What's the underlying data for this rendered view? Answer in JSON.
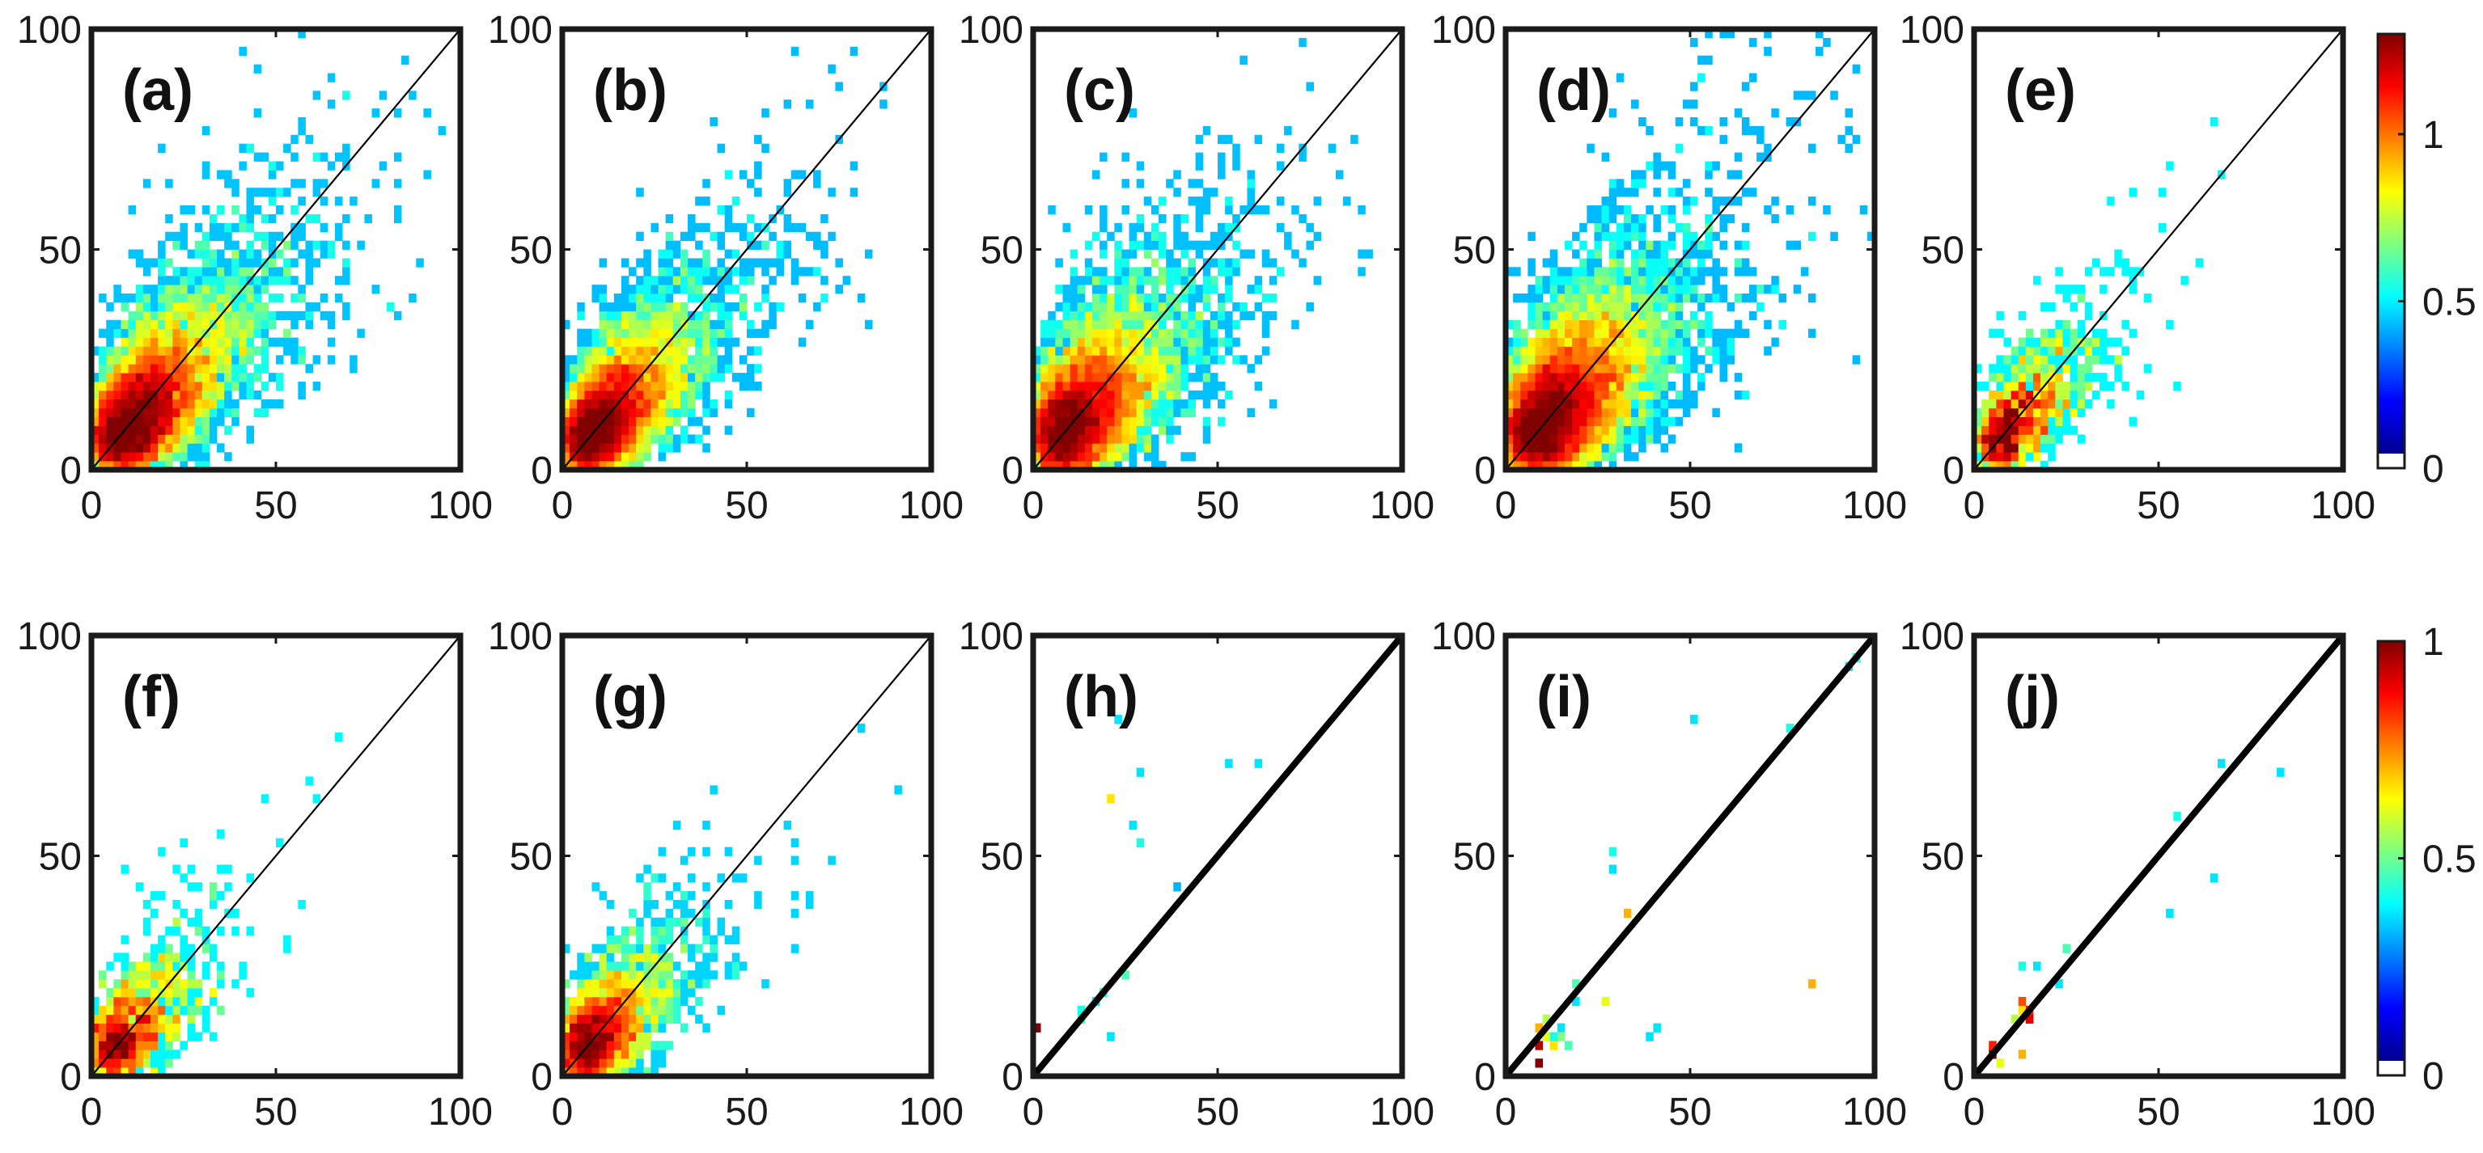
{
  "chart_data": [
    {
      "type": "heatmap",
      "panel_label": "(a)",
      "xlim": [
        0,
        100
      ],
      "ylim": [
        0,
        100
      ],
      "x_ticks": [
        "0",
        "50",
        "100"
      ],
      "y_ticks": [
        "0",
        "50",
        "100"
      ],
      "bins": 50,
      "density": "high",
      "spread": 0.9,
      "peak": [
        14,
        13
      ],
      "diagonal": "y = x",
      "seed": 11
    },
    {
      "type": "heatmap",
      "panel_label": "(b)",
      "xlim": [
        0,
        100
      ],
      "ylim": [
        0,
        100
      ],
      "x_ticks": [
        "0",
        "50",
        "100"
      ],
      "y_ticks": [
        "0",
        "50",
        "100"
      ],
      "bins": 50,
      "density": "high",
      "spread": 0.85,
      "peak": [
        12,
        12
      ],
      "diagonal": "y = x",
      "seed": 23
    },
    {
      "type": "heatmap",
      "panel_label": "(c)",
      "xlim": [
        0,
        100
      ],
      "ylim": [
        0,
        100
      ],
      "x_ticks": [
        "0",
        "50",
        "100"
      ],
      "y_ticks": [
        "0",
        "50",
        "100"
      ],
      "bins": 50,
      "density": "high",
      "spread": 1.0,
      "peak": [
        13,
        13
      ],
      "diagonal": "y = x",
      "seed": 37
    },
    {
      "type": "heatmap",
      "panel_label": "(d)",
      "xlim": [
        0,
        100
      ],
      "ylim": [
        0,
        100
      ],
      "x_ticks": [
        "0",
        "50",
        "100"
      ],
      "y_ticks": [
        "0",
        "50",
        "100"
      ],
      "bins": 50,
      "density": "very high",
      "spread": 1.0,
      "peak": [
        14,
        12
      ],
      "diagonal": "y = x",
      "seed": 41
    },
    {
      "type": "heatmap",
      "panel_label": "(e)",
      "xlim": [
        0,
        100
      ],
      "ylim": [
        0,
        100
      ],
      "x_ticks": [
        "0",
        "50",
        "100"
      ],
      "y_ticks": [
        "0",
        "50",
        "100"
      ],
      "bins": 50,
      "density": "sparse",
      "spread": 0.75,
      "peak": [
        12,
        10
      ],
      "diagonal": "y = x",
      "seed": 53
    },
    {
      "type": "heatmap",
      "panel_label": "(f)",
      "xlim": [
        0,
        100
      ],
      "ylim": [
        0,
        100
      ],
      "x_ticks": [
        "0",
        "50",
        "100"
      ],
      "y_ticks": [
        "0",
        "50",
        "100"
      ],
      "bins": 50,
      "density": "sparse",
      "spread": 0.8,
      "peak": [
        10,
        8
      ],
      "diagonal": "y = x",
      "seed": 67
    },
    {
      "type": "heatmap",
      "panel_label": "(g)",
      "xlim": [
        0,
        100
      ],
      "ylim": [
        0,
        100
      ],
      "x_ticks": [
        "0",
        "50",
        "100"
      ],
      "y_ticks": [
        "0",
        "50",
        "100"
      ],
      "bins": 50,
      "density": "medium",
      "spread": 0.9,
      "peak": [
        10,
        9
      ],
      "diagonal": "y = x",
      "seed": 71
    },
    {
      "type": "heatmap",
      "panel_label": "(h)",
      "xlim": [
        0,
        100
      ],
      "ylim": [
        0,
        100
      ],
      "x_ticks": [
        "0",
        "50",
        "100"
      ],
      "y_ticks": [
        "0",
        "50",
        "100"
      ],
      "bins": 50,
      "density": "very sparse",
      "diagonal": "y = x",
      "cells": [
        [
          1,
          10,
          1.0
        ],
        [
          12,
          13,
          0.45
        ],
        [
          13,
          14,
          0.4
        ],
        [
          17,
          17,
          0.35
        ],
        [
          19,
          19,
          0.4
        ],
        [
          21,
          8,
          0.35
        ],
        [
          22,
          80,
          0.35
        ],
        [
          24,
          23,
          0.45
        ],
        [
          27,
          56,
          0.35
        ],
        [
          28,
          52,
          0.4
        ],
        [
          20,
          63,
          0.65
        ],
        [
          29,
          68,
          0.35
        ],
        [
          39,
          42,
          0.3
        ],
        [
          52,
          70,
          0.35
        ],
        [
          60,
          70,
          0.35
        ]
      ]
    },
    {
      "type": "heatmap",
      "panel_label": "(i)",
      "xlim": [
        0,
        100
      ],
      "ylim": [
        0,
        100
      ],
      "x_ticks": [
        "0",
        "50",
        "100"
      ],
      "y_ticks": [
        "0",
        "50",
        "100"
      ],
      "bins": 50,
      "density": "very sparse",
      "diagonal": "y = x",
      "cells": [
        [
          8,
          6,
          0.95
        ],
        [
          8,
          3,
          1.0
        ],
        [
          9,
          10,
          0.7
        ],
        [
          10,
          8,
          0.6
        ],
        [
          10,
          12,
          0.55
        ],
        [
          12,
          7,
          0.65
        ],
        [
          13,
          9,
          0.4
        ],
        [
          14,
          11,
          0.35
        ],
        [
          15,
          8,
          0.5
        ],
        [
          16,
          6,
          0.45
        ],
        [
          18,
          20,
          0.45
        ],
        [
          19,
          17,
          0.35
        ],
        [
          27,
          16,
          0.6
        ],
        [
          28,
          50,
          0.4
        ],
        [
          29,
          46,
          0.35
        ],
        [
          32,
          36,
          0.7
        ],
        [
          38,
          9,
          0.35
        ],
        [
          40,
          10,
          0.35
        ],
        [
          50,
          81,
          0.35
        ],
        [
          76,
          78,
          0.4
        ],
        [
          82,
          20,
          0.7
        ],
        [
          92,
          92,
          0.35
        ],
        [
          95,
          94,
          0.4
        ]
      ]
    },
    {
      "type": "heatmap",
      "panel_label": "(j)",
      "xlim": [
        0,
        100
      ],
      "ylim": [
        0,
        100
      ],
      "x_ticks": [
        "0",
        "50",
        "100"
      ],
      "y_ticks": [
        "0",
        "50",
        "100"
      ],
      "bins": 50,
      "density": "very sparse",
      "diagonal": "y = x",
      "cells": [
        [
          4,
          5,
          1.0
        ],
        [
          5,
          7,
          0.85
        ],
        [
          6,
          3,
          0.6
        ],
        [
          10,
          13,
          0.55
        ],
        [
          12,
          14,
          0.65
        ],
        [
          13,
          17,
          0.8
        ],
        [
          14,
          15,
          0.85
        ],
        [
          13,
          4,
          0.7
        ],
        [
          14,
          12,
          0.9
        ],
        [
          12,
          25,
          0.4
        ],
        [
          16,
          24,
          0.35
        ],
        [
          24,
          28,
          0.45
        ],
        [
          22,
          20,
          0.35
        ],
        [
          53,
          37,
          0.35
        ],
        [
          54,
          58,
          0.4
        ],
        [
          65,
          44,
          0.35
        ],
        [
          67,
          70,
          0.35
        ],
        [
          82,
          68,
          0.35
        ]
      ]
    }
  ],
  "colorbars": [
    {
      "row": "top",
      "min": 0,
      "max": 1.3,
      "ticks": [
        {
          "value": 1,
          "label": "1"
        },
        {
          "value": 0.5,
          "label": "0.5"
        },
        {
          "value": 0,
          "label": "0"
        }
      ],
      "colormap": "jet",
      "zero_color": "#ffffff"
    },
    {
      "row": "bottom",
      "min": 0,
      "max": 1,
      "ticks": [
        {
          "value": 1,
          "label": "1"
        },
        {
          "value": 0.5,
          "label": "0.5"
        },
        {
          "value": 0,
          "label": "0"
        }
      ],
      "colormap": "jet",
      "zero_color": "#ffffff"
    }
  ],
  "colors": {
    "axes": "#1a1a1a",
    "diagonal": "#000000",
    "background": "#ffffff"
  }
}
